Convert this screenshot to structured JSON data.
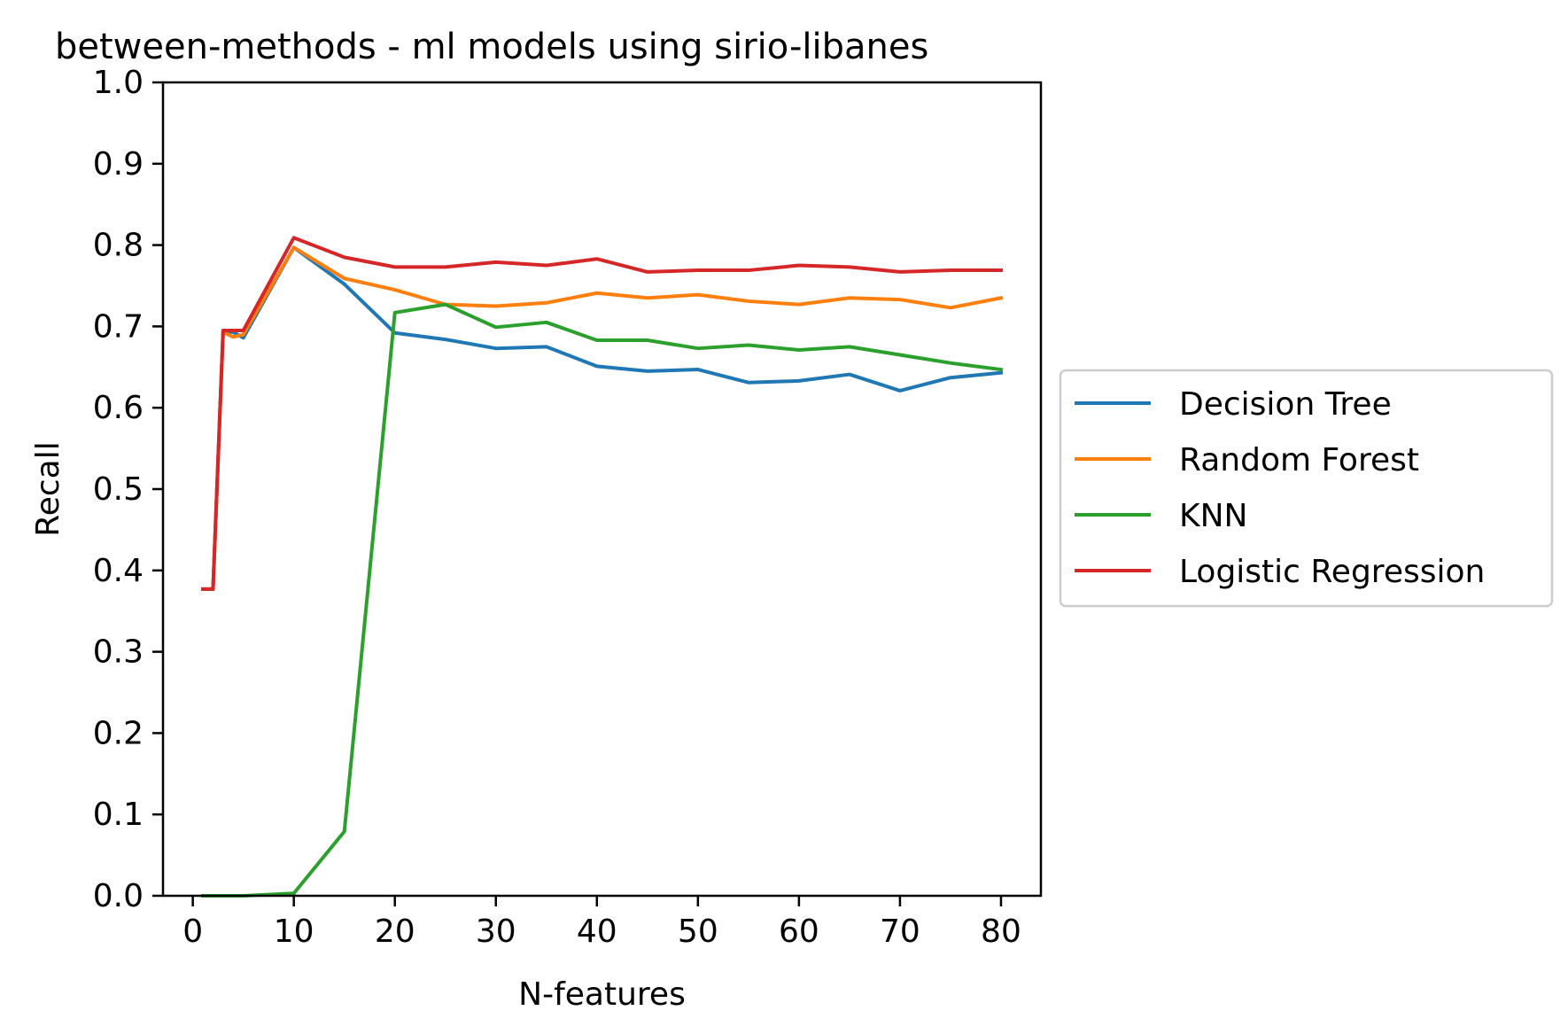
{
  "chart_data": {
    "type": "line",
    "title": "between-methods - ml models using sirio-libanes",
    "xlabel": "N-features",
    "ylabel": "Recall",
    "xlim": [
      -2.95,
      83.95
    ],
    "ylim": [
      0.0,
      1.0
    ],
    "xticks": [
      0,
      10,
      20,
      30,
      40,
      50,
      60,
      70,
      80
    ],
    "yticks": [
      0.0,
      0.1,
      0.2,
      0.3,
      0.4,
      0.5,
      0.6,
      0.7,
      0.8,
      0.9,
      1.0
    ],
    "xtick_labels": [
      "0",
      "10",
      "20",
      "30",
      "40",
      "50",
      "60",
      "70",
      "80"
    ],
    "ytick_labels": [
      "0.0",
      "0.1",
      "0.2",
      "0.3",
      "0.4",
      "0.5",
      "0.6",
      "0.7",
      "0.8",
      "0.9",
      "1.0"
    ],
    "grid": false,
    "legend": "center-right-outside",
    "series": [
      {
        "name": "Decision Tree",
        "color": "#1f77b4",
        "x": [
          1,
          2,
          3,
          4,
          5,
          10,
          15,
          20,
          25,
          30,
          35,
          40,
          45,
          50,
          55,
          60,
          65,
          70,
          75,
          80
        ],
        "y": [
          0.377,
          0.377,
          0.693,
          0.693,
          0.686,
          0.797,
          0.752,
          0.692,
          0.684,
          0.673,
          0.675,
          0.651,
          0.645,
          0.647,
          0.631,
          0.633,
          0.641,
          0.621,
          0.637,
          0.643
        ]
      },
      {
        "name": "Random Forest",
        "color": "#ff7f0e",
        "x": [
          1,
          2,
          3,
          4,
          5,
          10,
          15,
          20,
          25,
          30,
          35,
          40,
          45,
          50,
          55,
          60,
          65,
          70,
          75,
          80
        ],
        "y": [
          0.377,
          0.377,
          0.693,
          0.687,
          0.69,
          0.797,
          0.759,
          0.745,
          0.727,
          0.725,
          0.729,
          0.741,
          0.735,
          0.739,
          0.731,
          0.727,
          0.735,
          0.733,
          0.723,
          0.735
        ]
      },
      {
        "name": "KNN",
        "color": "#2ca02c",
        "x": [
          1,
          5,
          10,
          15,
          20,
          25,
          30,
          35,
          40,
          45,
          50,
          55,
          60,
          65,
          70,
          75,
          80
        ],
        "y": [
          0.0,
          0.0,
          0.003,
          0.079,
          0.717,
          0.727,
          0.699,
          0.705,
          0.683,
          0.683,
          0.673,
          0.677,
          0.671,
          0.675,
          0.665,
          0.655,
          0.647
        ]
      },
      {
        "name": "Logistic Regression",
        "color": "#d62728",
        "x": [
          1,
          2,
          3,
          4,
          5,
          10,
          15,
          20,
          25,
          30,
          35,
          40,
          45,
          50,
          55,
          60,
          65,
          70,
          75,
          80
        ],
        "y": [
          0.377,
          0.377,
          0.695,
          0.695,
          0.695,
          0.809,
          0.785,
          0.773,
          0.773,
          0.779,
          0.775,
          0.783,
          0.767,
          0.769,
          0.769,
          0.775,
          0.773,
          0.767,
          0.769,
          0.769
        ]
      }
    ]
  }
}
